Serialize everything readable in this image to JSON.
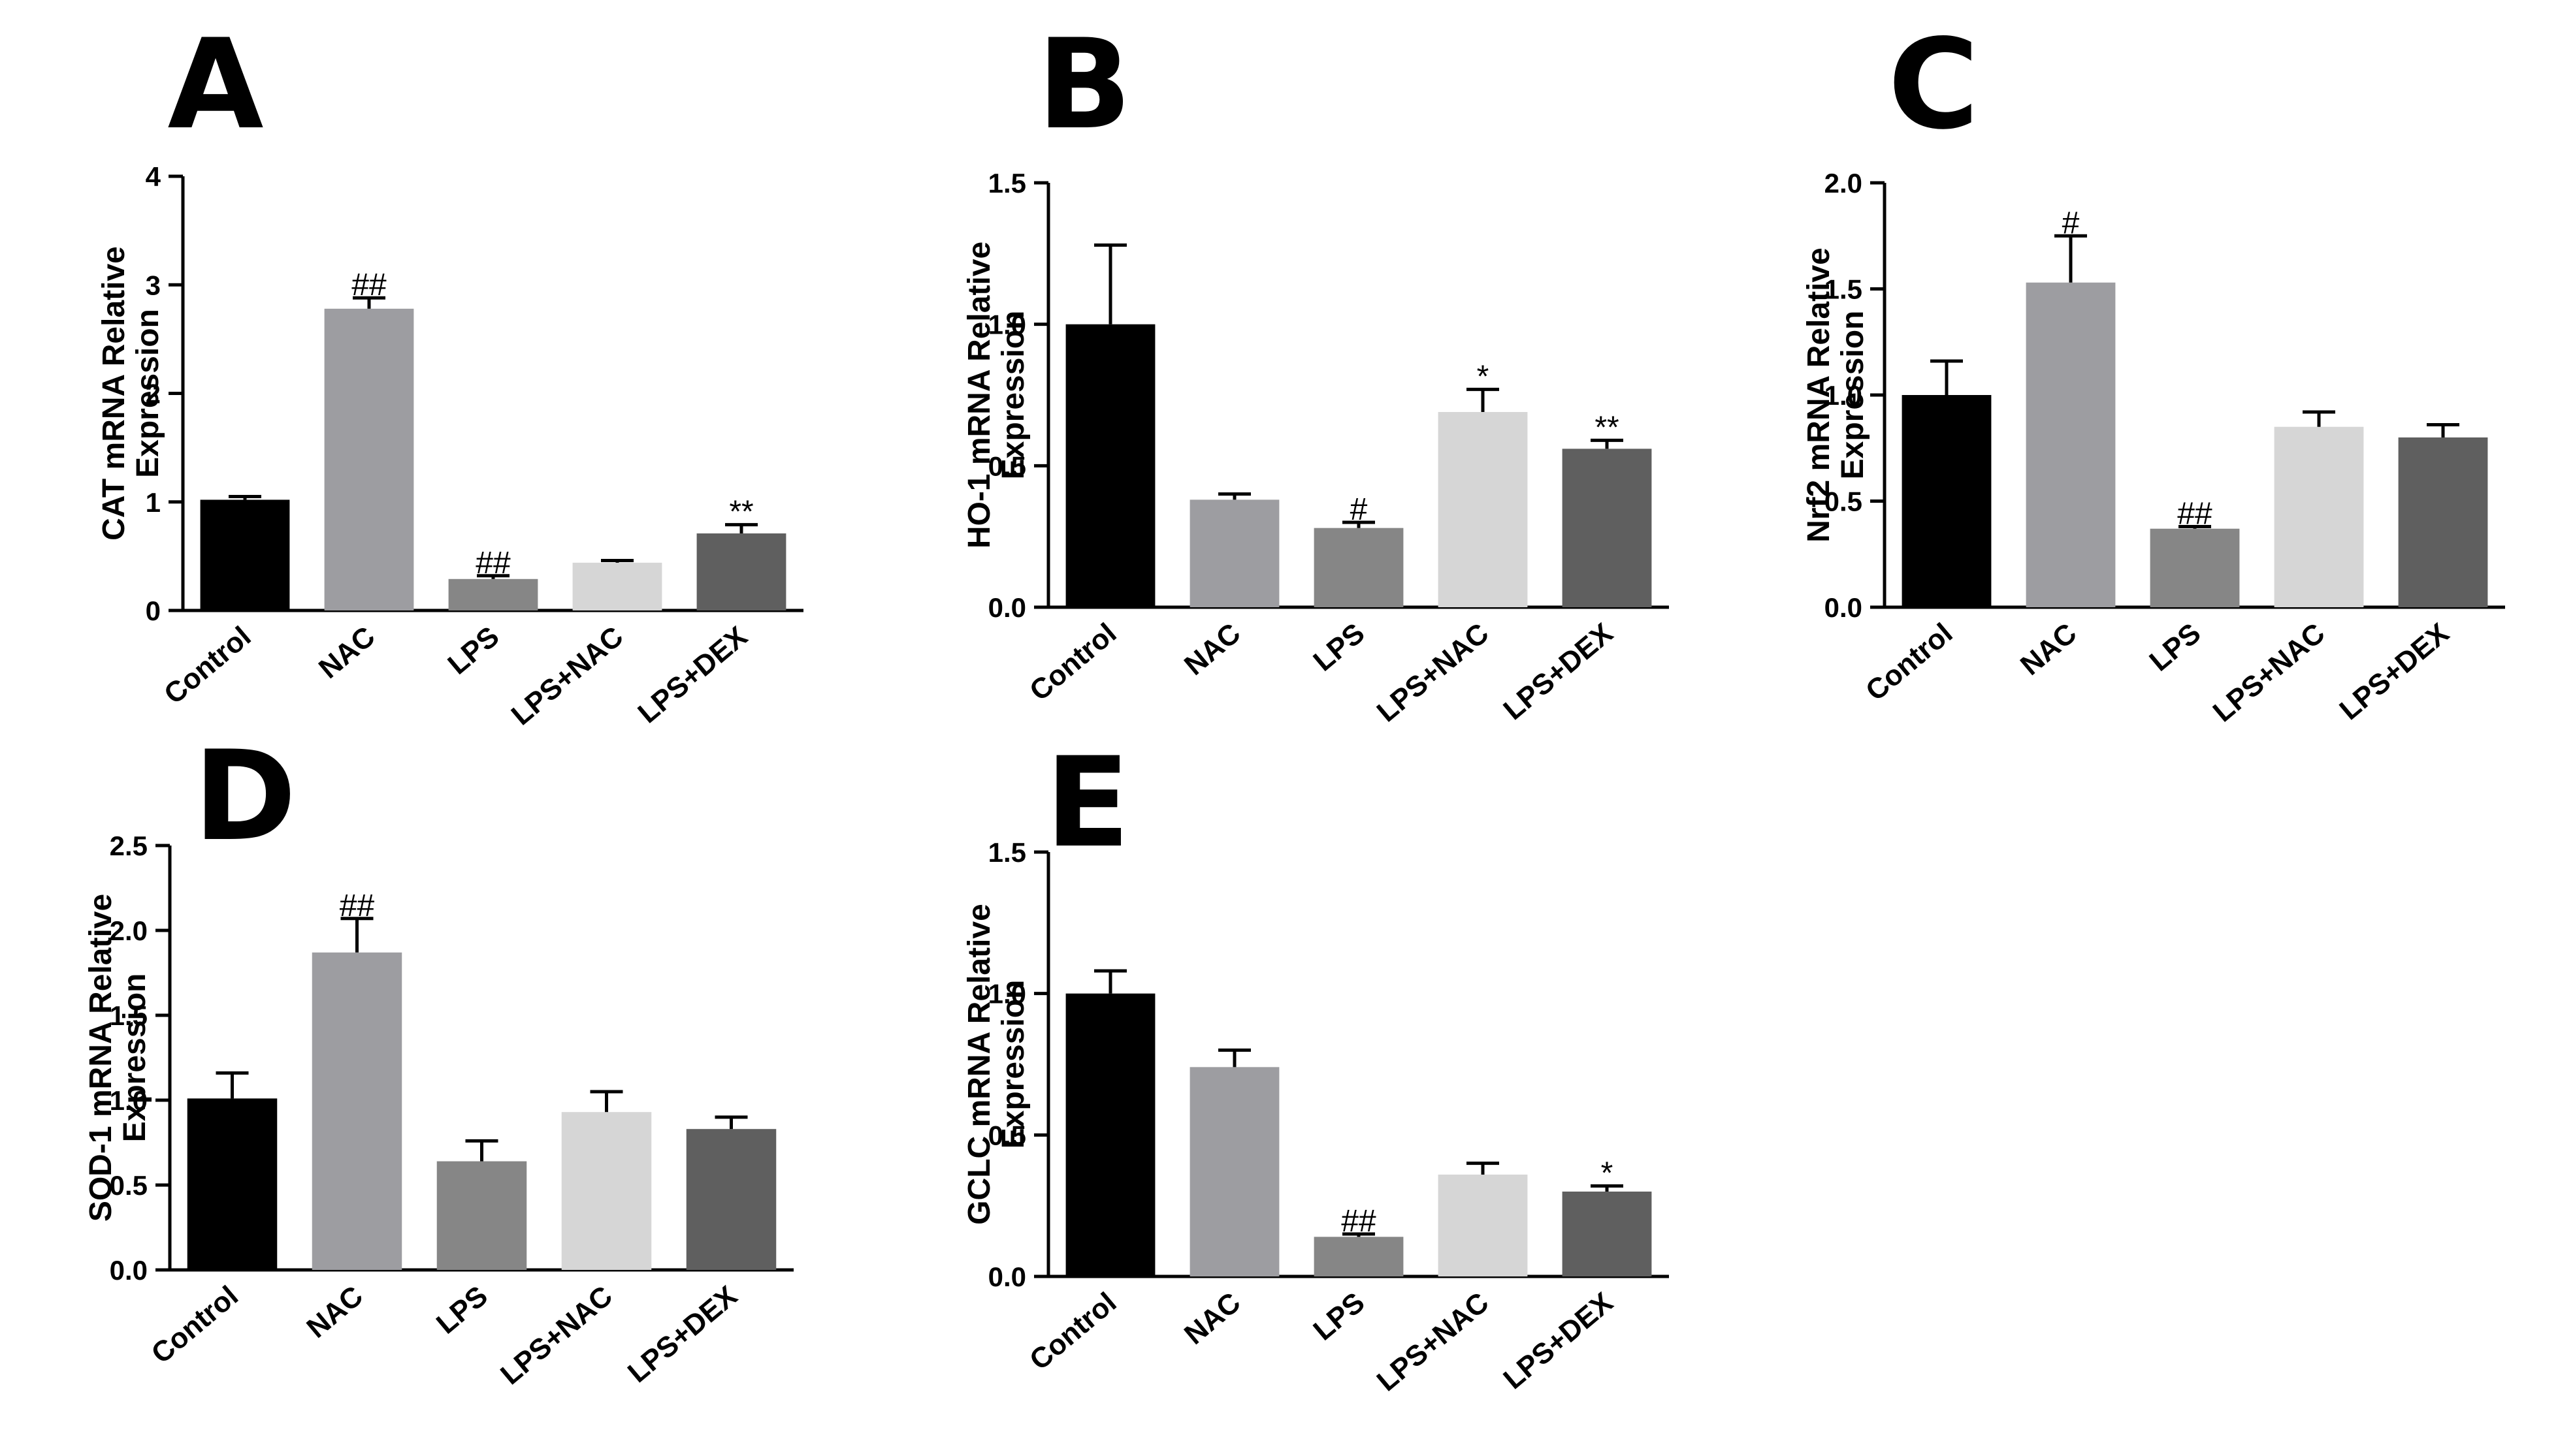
{
  "chart_data": [
    {
      "type": "bar",
      "panel": "A",
      "ylabel": [
        "CAT mRNA Relative",
        "Expression"
      ],
      "ylim": [
        0,
        4
      ],
      "yticks": [
        "0",
        "1",
        "2",
        "3",
        "4"
      ],
      "categories": [
        "Control",
        "NAC",
        "LPS",
        "LPS+NAC",
        "LPS+DEX"
      ],
      "values": [
        1.02,
        2.78,
        0.29,
        0.44,
        0.71
      ],
      "errors": [
        0.03,
        0.1,
        0.03,
        0.02,
        0.08
      ],
      "significance": [
        "",
        "##",
        "##",
        "",
        "**"
      ],
      "colors": [
        "#000000",
        "#9d9da1",
        "#868686",
        "#d6d6d6",
        "#5f5f5f"
      ]
    },
    {
      "type": "bar",
      "panel": "B",
      "ylabel": [
        "HO-1 mRNA Relative",
        "Expression"
      ],
      "ylim": [
        0,
        1.5
      ],
      "yticks": [
        "0.0",
        "0.5",
        "1.0",
        "1.5"
      ],
      "categories": [
        "Control",
        "NAC",
        "LPS",
        "LPS+NAC",
        "LPS+DEX"
      ],
      "values": [
        1.0,
        0.38,
        0.28,
        0.69,
        0.56
      ],
      "errors": [
        0.28,
        0.02,
        0.02,
        0.08,
        0.03
      ],
      "significance": [
        "",
        "",
        "#",
        "*",
        "**"
      ],
      "colors": [
        "#000000",
        "#9d9da1",
        "#868686",
        "#d6d6d6",
        "#5f5f5f"
      ]
    },
    {
      "type": "bar",
      "panel": "C",
      "ylabel": [
        "Nrf2 mRNA Relative",
        "Expression"
      ],
      "ylim": [
        0,
        2
      ],
      "yticks": [
        "0.0",
        "0.5",
        "1.0",
        "1.5",
        "2.0"
      ],
      "categories": [
        "Control",
        "NAC",
        "LPS",
        "LPS+NAC",
        "LPS+DEX"
      ],
      "values": [
        1.0,
        1.53,
        0.37,
        0.85,
        0.8
      ],
      "errors": [
        0.16,
        0.22,
        0.01,
        0.07,
        0.06
      ],
      "significance": [
        "",
        "#",
        "##",
        "",
        ""
      ],
      "colors": [
        "#000000",
        "#9d9da1",
        "#868686",
        "#d6d6d6",
        "#5f5f5f"
      ]
    },
    {
      "type": "bar",
      "panel": "D",
      "ylabel": [
        "SOD-1 mRNA Relative",
        "Expression"
      ],
      "ylim": [
        0,
        2.5
      ],
      "yticks": [
        "0.0",
        "0.5",
        "1.0",
        "1.5",
        "2.0",
        "2.5"
      ],
      "categories": [
        "Control",
        "NAC",
        "LPS",
        "LPS+NAC",
        "LPS+DEX"
      ],
      "values": [
        1.01,
        1.87,
        0.64,
        0.93,
        0.83
      ],
      "errors": [
        0.15,
        0.2,
        0.12,
        0.12,
        0.07
      ],
      "significance": [
        "",
        "##",
        "",
        "",
        ""
      ],
      "colors": [
        "#000000",
        "#9d9da1",
        "#868686",
        "#d6d6d6",
        "#5f5f5f"
      ]
    },
    {
      "type": "bar",
      "panel": "E",
      "ylabel": [
        "GCLC mRNA Relative",
        "Expression"
      ],
      "ylim": [
        0,
        1.5
      ],
      "yticks": [
        "0.0",
        "0.5",
        "1.0",
        "1.5"
      ],
      "categories": [
        "Control",
        "NAC",
        "LPS",
        "LPS+NAC",
        "LPS+DEX"
      ],
      "values": [
        1.0,
        0.74,
        0.14,
        0.36,
        0.3
      ],
      "errors": [
        0.08,
        0.06,
        0.01,
        0.04,
        0.02
      ],
      "significance": [
        "",
        "",
        "##",
        "",
        "*"
      ],
      "colors": [
        "#000000",
        "#9d9da1",
        "#868686",
        "#d6d6d6",
        "#5f5f5f"
      ]
    }
  ]
}
